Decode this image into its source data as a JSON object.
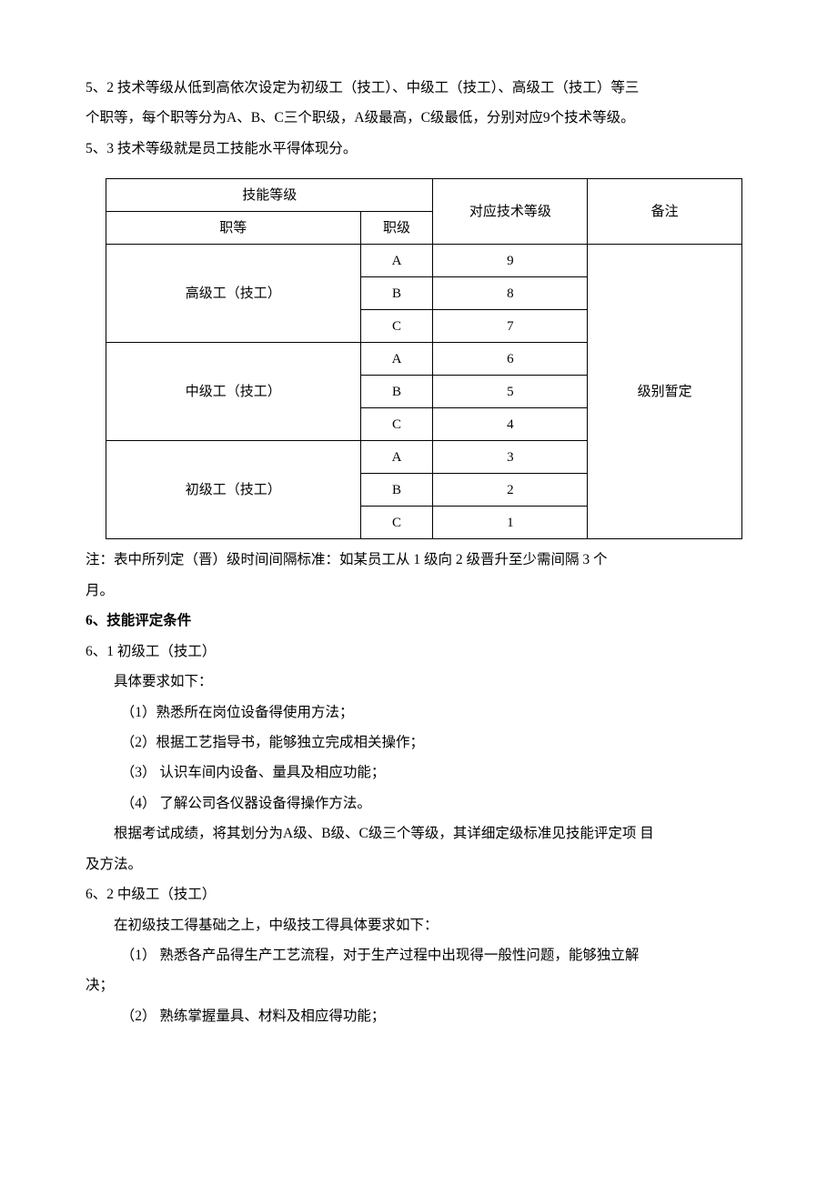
{
  "p_5_2a": "5、2 技术等级从低到高依次设定为初级工（技工）、中级工（技工）、高级工（技工）等三",
  "p_5_2b": "个职等，每个职等分为A、B、C三个职级，A级最高，C级最低，分别对应9个技术等级。",
  "p_5_3": "5、3 技术等级就是员工技能水平得体现分。",
  "table": {
    "h_skill": "技能等级",
    "h_tech": "对应技术等级",
    "h_remark": "备注",
    "h_zhideng": "职等",
    "h_zhiji": "职级",
    "groups": [
      {
        "name": "高级工（技工）",
        "rows": [
          {
            "grade": "A",
            "lvl": "9"
          },
          {
            "grade": "B",
            "lvl": "8"
          },
          {
            "grade": "C",
            "lvl": "7"
          }
        ]
      },
      {
        "name": "中级工（技工）",
        "rows": [
          {
            "grade": "A",
            "lvl": "6"
          },
          {
            "grade": "B",
            "lvl": "5"
          },
          {
            "grade": "C",
            "lvl": "4"
          }
        ]
      },
      {
        "name": "初级工（技工）",
        "rows": [
          {
            "grade": "A",
            "lvl": "3"
          },
          {
            "grade": "B",
            "lvl": "2"
          },
          {
            "grade": "C",
            "lvl": "1"
          }
        ]
      }
    ],
    "remark": "级别暂定"
  },
  "note_a": "注：表中所列定（晋）级时间间隔标准：如某员工从 1 级向 2 级晋升至少需间隔 3 个",
  "note_b": "月。",
  "h6": "6、技能评定条件",
  "s6_1": "6、1 初级工（技工）",
  "s6_1_intro": "具体要求如下：",
  "s6_1_i1": "（1）熟悉所在岗位设备得使用方法；",
  "s6_1_i2": "（2）根据工艺指导书，能够独立完成相关操作；",
  "s6_1_i3": "（3） 认识车间内设备、量具及相应功能；",
  "s6_1_i4": "（4） 了解公司各仪器设备得操作方法。",
  "s6_1_tail_a": "根据考试成绩，将其划分为A级、B级、C级三个等级，其详细定级标准见技能评定项 目",
  "s6_1_tail_b": "及方法。",
  "s6_2": "6、2 中级工（技工）",
  "s6_2_intro": "在初级技工得基础之上，中级技工得具体要求如下：",
  "s6_2_i1": "（1） 熟悉各产品得生产工艺流程，对于生产过程中出现得一般性问题，能够独立解",
  "s6_2_i1b": "决；",
  "s6_2_i2": "（2） 熟练掌握量具、材料及相应得功能；"
}
